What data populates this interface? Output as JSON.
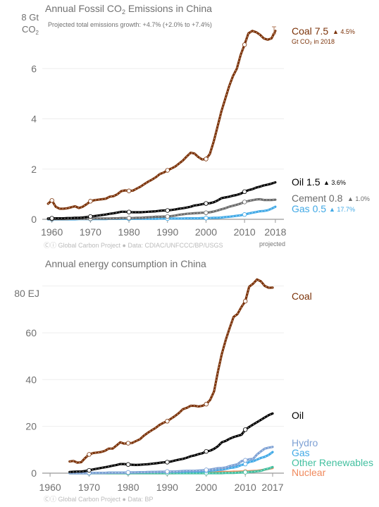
{
  "colors": {
    "coal": "#7b3208",
    "oil": "#000000",
    "cement": "#6b6b6b",
    "gas": "#41a9e6",
    "hydro": "#7ea1d4",
    "other_renewables": "#43c0a0",
    "nuclear": "#f08a5d",
    "text": "#707070",
    "axis": "#999999",
    "grid": "#eeeeee"
  },
  "chart_data": [
    {
      "type": "line",
      "title_prefix": "Annual Fossil CO",
      "title_sub": "2",
      "title_suffix": " Emissions in China",
      "unit_label_1": "8 Gt",
      "unit_label_2_prefix": "CO",
      "unit_label_2_sub": "2",
      "annotation": "Projected total emissions growth: +4.7% (+2.0% to +7.4%)",
      "xlim": [
        1960,
        2018
      ],
      "ylim": [
        0,
        8
      ],
      "x_ticks": [
        "1960",
        "1970",
        "1980",
        "1990",
        "2000",
        "2010",
        "2018"
      ],
      "y_ticks": [
        "0",
        "2",
        "4",
        "6"
      ],
      "x_tick_note": "projected",
      "credit": "Ⓒⓘ Global Carbon Project  ●  Data: CDIAC/UNFCCC/BP/USGS",
      "x": [
        1959,
        1960,
        1961,
        1962,
        1963,
        1964,
        1965,
        1966,
        1967,
        1968,
        1969,
        1970,
        1971,
        1972,
        1973,
        1974,
        1975,
        1976,
        1977,
        1978,
        1979,
        1980,
        1981,
        1982,
        1983,
        1984,
        1985,
        1986,
        1987,
        1988,
        1989,
        1990,
        1991,
        1992,
        1993,
        1994,
        1995,
        1996,
        1997,
        1998,
        1999,
        2000,
        2001,
        2002,
        2003,
        2004,
        2005,
        2006,
        2007,
        2008,
        2009,
        2010,
        2011,
        2012,
        2013,
        2014,
        2015,
        2016,
        2017,
        2018
      ],
      "series": [
        {
          "name": "Coal",
          "value_label": "7.5",
          "growth": "4.5%",
          "unit": "Gt CO₂ in 2018",
          "color_key": "coal",
          "values": [
            0.62,
            0.75,
            0.5,
            0.42,
            0.42,
            0.44,
            0.48,
            0.52,
            0.45,
            0.5,
            0.6,
            0.72,
            0.76,
            0.78,
            0.8,
            0.82,
            0.9,
            0.92,
            1.0,
            1.12,
            1.15,
            1.13,
            1.14,
            1.22,
            1.3,
            1.4,
            1.5,
            1.58,
            1.68,
            1.8,
            1.86,
            1.95,
            2.02,
            2.1,
            2.22,
            2.34,
            2.5,
            2.65,
            2.62,
            2.48,
            2.38,
            2.4,
            2.6,
            3.1,
            3.7,
            4.3,
            4.8,
            5.3,
            5.7,
            6.0,
            6.55,
            6.95,
            7.4,
            7.5,
            7.45,
            7.35,
            7.2,
            7.15,
            7.2,
            7.5
          ]
        },
        {
          "name": "Oil",
          "value_label": "1.5",
          "growth": "3.6%",
          "color_key": "oil",
          "values": [
            0.03,
            0.04,
            0.04,
            0.04,
            0.04,
            0.05,
            0.05,
            0.06,
            0.06,
            0.07,
            0.09,
            0.11,
            0.13,
            0.15,
            0.17,
            0.19,
            0.22,
            0.24,
            0.27,
            0.3,
            0.3,
            0.29,
            0.28,
            0.28,
            0.28,
            0.29,
            0.3,
            0.31,
            0.32,
            0.34,
            0.35,
            0.35,
            0.37,
            0.39,
            0.42,
            0.44,
            0.47,
            0.5,
            0.55,
            0.57,
            0.6,
            0.63,
            0.64,
            0.68,
            0.75,
            0.84,
            0.87,
            0.9,
            0.94,
            0.97,
            1.02,
            1.1,
            1.16,
            1.2,
            1.26,
            1.3,
            1.35,
            1.38,
            1.42,
            1.47
          ]
        },
        {
          "name": "Cement",
          "value_label": "0.8",
          "growth": "1.0%",
          "color_key": "cement",
          "values": [
            0.01,
            0.01,
            0.01,
            0.01,
            0.01,
            0.01,
            0.02,
            0.02,
            0.02,
            0.02,
            0.02,
            0.02,
            0.03,
            0.03,
            0.03,
            0.03,
            0.03,
            0.04,
            0.04,
            0.05,
            0.05,
            0.05,
            0.05,
            0.06,
            0.06,
            0.07,
            0.08,
            0.09,
            0.1,
            0.1,
            0.11,
            0.11,
            0.13,
            0.15,
            0.18,
            0.2,
            0.22,
            0.23,
            0.24,
            0.25,
            0.26,
            0.26,
            0.28,
            0.31,
            0.35,
            0.4,
            0.44,
            0.5,
            0.54,
            0.58,
            0.63,
            0.69,
            0.73,
            0.76,
            0.79,
            0.8,
            0.77,
            0.77,
            0.77,
            0.78
          ]
        },
        {
          "name": "Gas",
          "value_label": "0.5",
          "growth": "17.7%",
          "color_key": "gas",
          "values": [
            0.0,
            0.0,
            0.0,
            0.0,
            0.0,
            0.0,
            0.0,
            0.0,
            0.01,
            0.01,
            0.01,
            0.01,
            0.01,
            0.01,
            0.01,
            0.01,
            0.02,
            0.02,
            0.02,
            0.02,
            0.02,
            0.02,
            0.02,
            0.02,
            0.02,
            0.02,
            0.02,
            0.02,
            0.02,
            0.03,
            0.03,
            0.03,
            0.03,
            0.03,
            0.03,
            0.03,
            0.04,
            0.04,
            0.04,
            0.04,
            0.05,
            0.05,
            0.05,
            0.06,
            0.06,
            0.07,
            0.09,
            0.1,
            0.12,
            0.14,
            0.16,
            0.19,
            0.23,
            0.26,
            0.29,
            0.32,
            0.33,
            0.36,
            0.42,
            0.5
          ]
        }
      ],
      "legend_placement": "right"
    },
    {
      "type": "line",
      "title": "Annual energy consumption in China",
      "unit_label": "80 EJ",
      "xlim": [
        1960,
        2017
      ],
      "ylim": [
        0,
        85
      ],
      "x_ticks": [
        "1960",
        "1970",
        "1980",
        "1990",
        "2000",
        "2010",
        "2017"
      ],
      "y_ticks": [
        "0",
        "20",
        "40",
        "60"
      ],
      "credit": "Ⓒⓘ Global Carbon Project  ●  Data: BP",
      "x": [
        1965,
        1966,
        1967,
        1968,
        1969,
        1970,
        1971,
        1972,
        1973,
        1974,
        1975,
        1976,
        1977,
        1978,
        1979,
        1980,
        1981,
        1982,
        1983,
        1984,
        1985,
        1986,
        1987,
        1988,
        1989,
        1990,
        1991,
        1992,
        1993,
        1994,
        1995,
        1996,
        1997,
        1998,
        1999,
        2000,
        2001,
        2002,
        2003,
        2004,
        2005,
        2006,
        2007,
        2008,
        2009,
        2010,
        2011,
        2012,
        2013,
        2014,
        2015,
        2016,
        2017
      ],
      "series": [
        {
          "name": "Coal",
          "color_key": "coal",
          "values": [
            5.0,
            5.2,
            4.5,
            4.7,
            6.5,
            8.0,
            8.6,
            8.8,
            9.0,
            9.5,
            10.5,
            10.5,
            11.8,
            13.2,
            12.6,
            12.8,
            12.9,
            13.7,
            14.5,
            16.0,
            17.2,
            18.3,
            19.3,
            20.6,
            21.5,
            22.2,
            23.3,
            24.4,
            25.7,
            27.3,
            27.9,
            28.8,
            28.8,
            28.5,
            28.8,
            29.5,
            31.3,
            35.0,
            43.5,
            51.0,
            57.0,
            62.0,
            66.8,
            68.0,
            71.0,
            73.5,
            79.7,
            81.0,
            82.8,
            82.0,
            80.0,
            79.2,
            79.3
          ]
        },
        {
          "name": "Oil",
          "color_key": "oil",
          "values": [
            0.5,
            0.6,
            0.7,
            0.7,
            0.9,
            1.2,
            1.6,
            1.9,
            2.2,
            2.5,
            2.8,
            3.2,
            3.5,
            3.9,
            3.9,
            3.7,
            3.6,
            3.5,
            3.6,
            3.7,
            3.8,
            4.0,
            4.2,
            4.4,
            4.6,
            4.7,
            5.0,
            5.4,
            5.8,
            6.1,
            6.6,
            7.2,
            7.6,
            8.1,
            8.5,
            9.3,
            9.6,
            10.4,
            11.5,
            13.2,
            13.8,
            14.7,
            15.4,
            15.9,
            16.4,
            18.6,
            19.7,
            20.8,
            21.8,
            22.8,
            23.8,
            24.8,
            25.5
          ]
        },
        {
          "name": "Hydro",
          "color_key": "hydro",
          "values": [
            0.0,
            0.0,
            0.0,
            0.0,
            0.0,
            0.1,
            0.1,
            0.1,
            0.1,
            0.1,
            0.2,
            0.2,
            0.2,
            0.2,
            0.2,
            0.3,
            0.3,
            0.3,
            0.4,
            0.4,
            0.5,
            0.5,
            0.5,
            0.6,
            0.6,
            0.7,
            0.7,
            0.7,
            0.8,
            0.9,
            1.0,
            1.0,
            1.0,
            1.1,
            1.2,
            1.4,
            1.5,
            1.8,
            2.1,
            2.2,
            2.4,
            3.0,
            3.4,
            3.8,
            5.1,
            5.5,
            5.9,
            6.1,
            8.0,
            9.3,
            10.5,
            10.9,
            11.2
          ]
        },
        {
          "name": "Gas",
          "color_key": "gas",
          "values": [
            0.0,
            0.0,
            0.0,
            0.0,
            0.0,
            0.0,
            0.1,
            0.1,
            0.1,
            0.1,
            0.2,
            0.2,
            0.2,
            0.2,
            0.2,
            0.3,
            0.3,
            0.3,
            0.4,
            0.4,
            0.4,
            0.5,
            0.5,
            0.5,
            0.5,
            0.6,
            0.6,
            0.6,
            0.6,
            0.6,
            0.7,
            0.7,
            0.7,
            0.7,
            0.8,
            0.9,
            1.1,
            1.2,
            1.4,
            1.5,
            1.8,
            2.2,
            2.4,
            2.8,
            3.5,
            3.9,
            4.8,
            5.1,
            5.8,
            6.5,
            7.0,
            7.8,
            9.0
          ]
        },
        {
          "name": "Other Renewables",
          "color_key": "other_renewables",
          "values": [
            0.0,
            0.0,
            0.0,
            0.0,
            0.0,
            0.0,
            0.0,
            0.0,
            0.0,
            0.0,
            0.0,
            0.0,
            0.0,
            0.0,
            0.0,
            0.0,
            0.0,
            0.0,
            0.0,
            0.0,
            0.0,
            0.0,
            0.0,
            0.0,
            0.0,
            0.0,
            0.0,
            0.0,
            0.0,
            0.0,
            0.0,
            0.0,
            0.0,
            0.0,
            0.0,
            0.0,
            0.0,
            0.0,
            0.0,
            0.0,
            0.1,
            0.1,
            0.1,
            0.2,
            0.3,
            0.4,
            0.5,
            0.6,
            0.8,
            1.0,
            1.6,
            2.0,
            2.6
          ]
        },
        {
          "name": "Nuclear",
          "color_key": "nuclear",
          "values": [
            0.0,
            0.0,
            0.0,
            0.0,
            0.0,
            0.0,
            0.0,
            0.0,
            0.0,
            0.0,
            0.0,
            0.0,
            0.0,
            0.0,
            0.0,
            0.0,
            0.0,
            0.0,
            0.0,
            0.0,
            0.0,
            0.0,
            0.0,
            0.0,
            0.0,
            0.0,
            0.0,
            0.0,
            0.1,
            0.1,
            0.1,
            0.1,
            0.1,
            0.1,
            0.1,
            0.1,
            0.2,
            0.2,
            0.4,
            0.5,
            0.5,
            0.5,
            0.6,
            0.6,
            0.7,
            0.7,
            0.8,
            0.9,
            1.0,
            1.2,
            1.5,
            1.9,
            2.2
          ]
        }
      ],
      "legend_placement": "right"
    }
  ]
}
